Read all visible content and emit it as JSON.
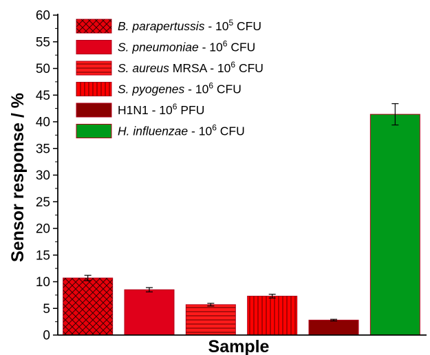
{
  "chart_data": {
    "type": "bar",
    "xlabel": "Sample",
    "ylabel": "Sensor response / %",
    "ylim": [
      0,
      60
    ],
    "y_major_step": 5,
    "grid": false,
    "legend_position": "top-left",
    "series": [
      {
        "id": "b-parapertussis",
        "value": 10.7,
        "error": 0.5,
        "color": "#e8000b",
        "pattern": "crosshatch",
        "legend": {
          "species": "B. parapertussis",
          "dash": " - 10",
          "exp": "5",
          "unit": " CFU"
        }
      },
      {
        "id": "s-pneumoniae",
        "value": 8.5,
        "error": 0.4,
        "color": "#e0001a",
        "pattern": "none",
        "legend": {
          "species": "S. pneumoniae",
          "dash": " - 10",
          "exp": "6",
          "unit": " CFU"
        }
      },
      {
        "id": "s-aureus",
        "value": 5.7,
        "error": 0.25,
        "color": "#ff1a1a",
        "pattern": "horizontal",
        "legend": {
          "species": "S. aureus",
          "extra": " MRSA",
          "dash": " - 10",
          "exp": "6",
          "unit": " CFU"
        }
      },
      {
        "id": "s-pyogenes",
        "value": 7.3,
        "error": 0.35,
        "color": "#ff0000",
        "pattern": "vertical",
        "legend": {
          "species": "S. pyogenes",
          "dash": " - 10",
          "exp": "6",
          "unit": " CFU"
        }
      },
      {
        "id": "h1n1",
        "value": 2.8,
        "error": 0.15,
        "color": "#8b0000",
        "pattern": "none",
        "legend": {
          "plain": "H1N1",
          "dash": " - 10",
          "exp": "6",
          "unit": " PFU"
        }
      },
      {
        "id": "h-influenzae",
        "value": 41.4,
        "error": 2.0,
        "color": "#009a1a",
        "pattern": "none",
        "legend": {
          "species": "H. influenzae",
          "dash": " - 10",
          "exp": "6",
          "unit": " CFU"
        }
      }
    ]
  }
}
